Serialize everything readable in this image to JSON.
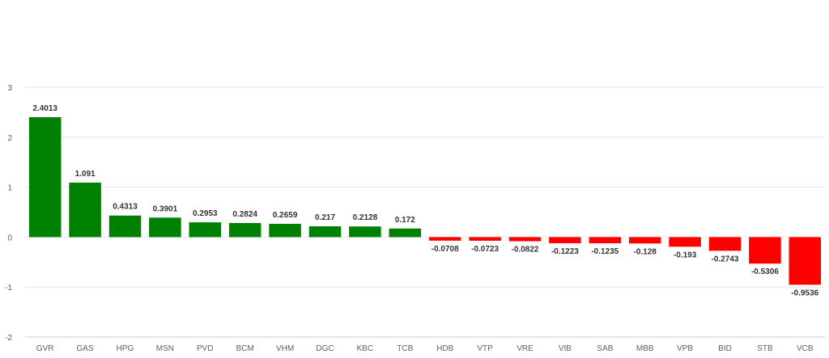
{
  "chart_data": {
    "type": "bar",
    "title": "",
    "xlabel": "",
    "ylabel": "",
    "ylim": [
      -2,
      3
    ],
    "yticks": [
      -2,
      -1,
      0,
      1,
      2,
      3
    ],
    "grid": true,
    "categories": [
      "GVR",
      "GAS",
      "HPG",
      "MSN",
      "PVD",
      "BCM",
      "VHM",
      "DGC",
      "KBC",
      "TCB",
      "HDB",
      "VTP",
      "VRE",
      "VIB",
      "SAB",
      "MBB",
      "VPB",
      "BID",
      "STB",
      "VCB"
    ],
    "values": [
      2.4013,
      1.091,
      0.4313,
      0.3901,
      0.2953,
      0.2824,
      0.2659,
      0.217,
      0.2128,
      0.172,
      -0.0708,
      -0.0723,
      -0.0822,
      -0.1223,
      -0.1235,
      -0.128,
      -0.193,
      -0.2743,
      -0.5306,
      -0.9536
    ],
    "data_labels": [
      "2.4013",
      "1.091",
      "0.4313",
      "0.3901",
      "0.2953",
      "0.2824",
      "0.2659",
      "0.217",
      "0.2128",
      "0.172",
      "-0.0708",
      "-0.0723",
      "-0.0822",
      "-0.1223",
      "-0.1235",
      "-0.128",
      "-0.193",
      "-0.2743",
      "-0.5306",
      "-0.9536"
    ],
    "colors": {
      "positive": "#008000",
      "negative": "#ff0000"
    }
  }
}
